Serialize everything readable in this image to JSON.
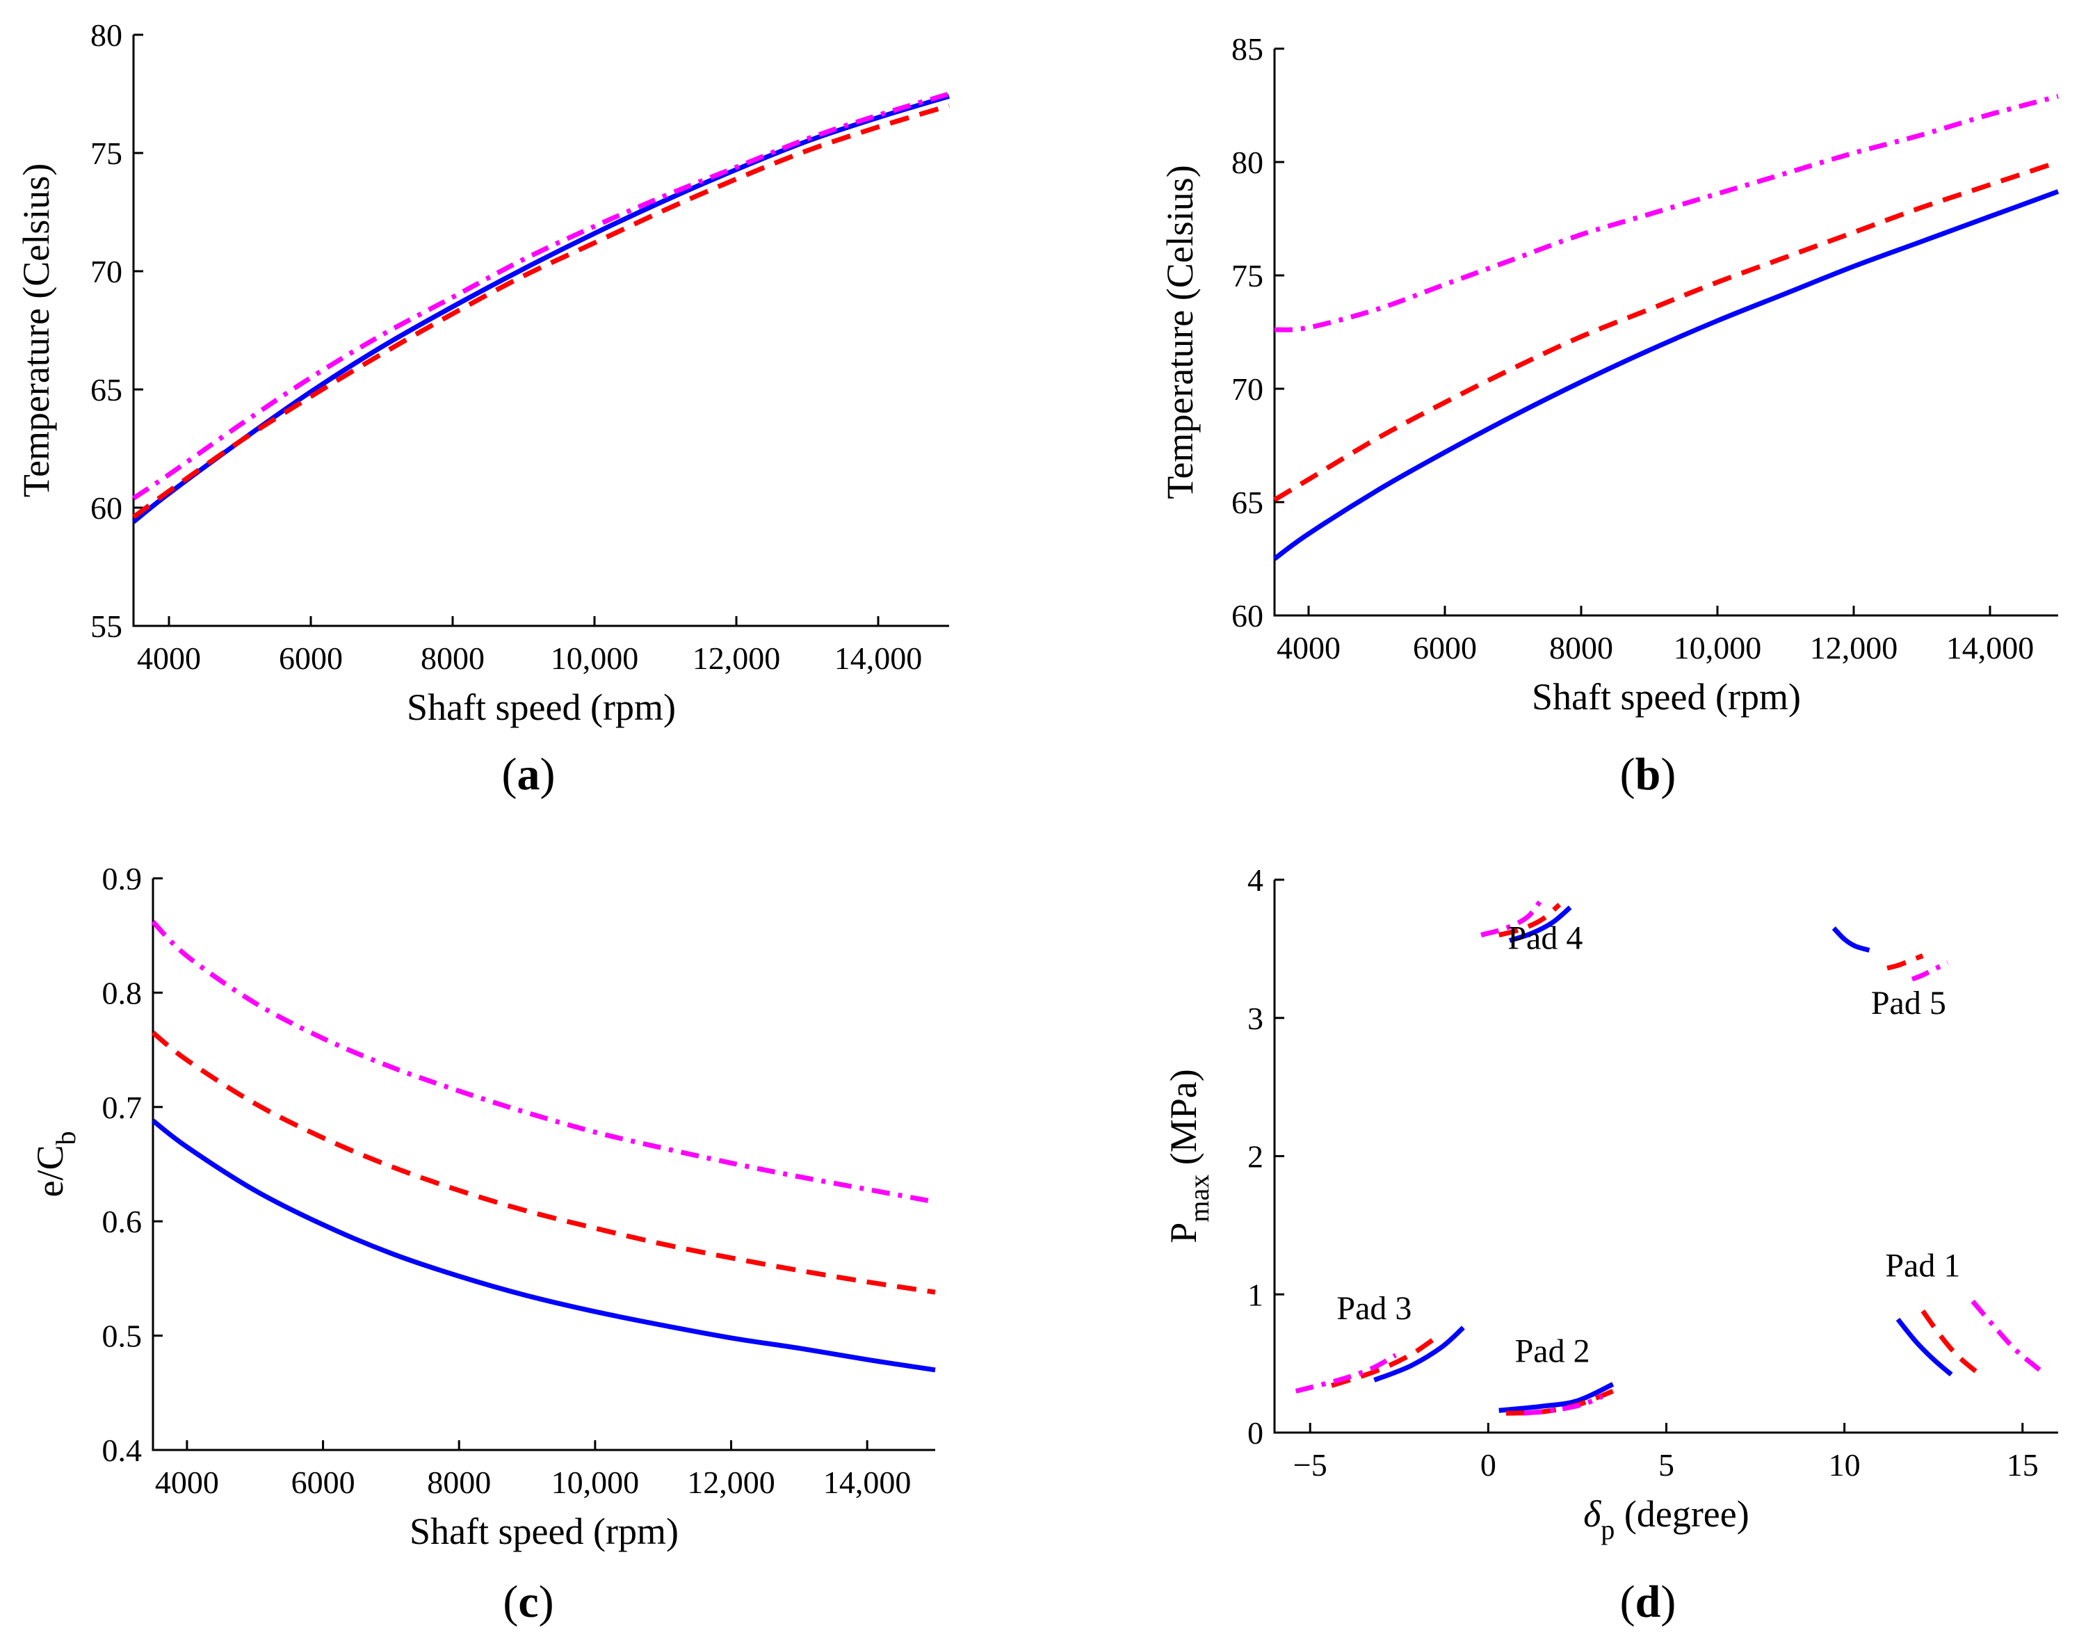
{
  "colors": {
    "blue": "#0000ff",
    "red": "#ff0000",
    "magenta": "#ff00ff",
    "axis": "#000000"
  },
  "chart_data": [
    {
      "type": "line",
      "panel": "(a)",
      "panel_letter": "a",
      "xlabel": "Shaft speed (rpm)",
      "ylabel": "Temperature (Celsius)",
      "xlim": [
        3500,
        15000
      ],
      "ylim": [
        55,
        80
      ],
      "xticks": [
        4000,
        6000,
        8000,
        10000,
        12000,
        14000
      ],
      "xtick_labels": [
        "4000",
        "6000",
        "8000",
        "10,000",
        "12,000",
        "14,000"
      ],
      "yticks": [
        55,
        60,
        65,
        70,
        75,
        80
      ],
      "ytick_labels": [
        "55",
        "60",
        "65",
        "70",
        "75",
        "80"
      ],
      "x": [
        3500,
        4000,
        5000,
        6000,
        7000,
        8000,
        9000,
        10000,
        11000,
        12000,
        13000,
        14000,
        15000
      ],
      "series": [
        {
          "name": "blue solid",
          "color": "blue",
          "dash": "solid",
          "values": [
            59.4,
            60.6,
            62.8,
            64.9,
            66.8,
            68.5,
            70.1,
            71.6,
            73.0,
            74.3,
            75.5,
            76.5,
            77.4
          ]
        },
        {
          "name": "red dashed",
          "color": "red",
          "dash": "dash",
          "values": [
            59.6,
            60.7,
            62.8,
            64.7,
            66.5,
            68.2,
            69.8,
            71.2,
            72.6,
            73.9,
            75.1,
            76.1,
            77.0
          ]
        },
        {
          "name": "magenta dash-dot",
          "color": "magenta",
          "dash": "dashdot",
          "values": [
            60.4,
            61.4,
            63.5,
            65.5,
            67.3,
            68.9,
            70.5,
            71.9,
            73.2,
            74.4,
            75.6,
            76.6,
            77.5
          ]
        }
      ]
    },
    {
      "type": "line",
      "panel": "(b)",
      "panel_letter": "b",
      "xlabel": "Shaft speed (rpm)",
      "ylabel": "Temperature (Celsius)",
      "xlim": [
        3500,
        15000
      ],
      "ylim": [
        60,
        85
      ],
      "xticks": [
        4000,
        6000,
        8000,
        10000,
        12000,
        14000
      ],
      "xtick_labels": [
        "4000",
        "6000",
        "8000",
        "10,000",
        "12,000",
        "14,000"
      ],
      "yticks": [
        60,
        65,
        70,
        75,
        80,
        85
      ],
      "ytick_labels": [
        "60",
        "65",
        "70",
        "75",
        "80",
        "85"
      ],
      "x": [
        3500,
        4000,
        5000,
        6000,
        7000,
        8000,
        9000,
        10000,
        11000,
        12000,
        13000,
        14000,
        15000
      ],
      "series": [
        {
          "name": "blue solid",
          "color": "blue",
          "dash": "solid",
          "values": [
            62.5,
            63.6,
            65.5,
            67.2,
            68.8,
            70.3,
            71.7,
            73.0,
            74.2,
            75.4,
            76.5,
            77.6,
            78.7
          ]
        },
        {
          "name": "red dashed",
          "color": "red",
          "dash": "dash",
          "values": [
            65.1,
            66.0,
            67.8,
            69.4,
            70.9,
            72.3,
            73.5,
            74.7,
            75.8,
            76.9,
            78.0,
            79.0,
            80.0
          ]
        },
        {
          "name": "magenta dash-dot",
          "color": "magenta",
          "dash": "dashdot",
          "values": [
            72.6,
            72.7,
            73.5,
            74.6,
            75.7,
            76.8,
            77.7,
            78.6,
            79.5,
            80.4,
            81.2,
            82.1,
            82.9
          ]
        }
      ]
    },
    {
      "type": "line",
      "panel": "(c)",
      "panel_letter": "c",
      "xlabel": "Shaft speed (rpm)",
      "ylabel_main": "e/C",
      "ylabel_sub": "b",
      "xlim": [
        3500,
        15000
      ],
      "ylim": [
        0.4,
        0.9
      ],
      "xticks": [
        4000,
        6000,
        8000,
        10000,
        12000,
        14000
      ],
      "xtick_labels": [
        "4000",
        "6000",
        "8000",
        "10,000",
        "12,000",
        "14,000"
      ],
      "yticks": [
        0.4,
        0.5,
        0.6,
        0.7,
        0.8,
        0.9
      ],
      "ytick_labels": [
        "0.4",
        "0.5",
        "0.6",
        "0.7",
        "0.8",
        "0.9"
      ],
      "x": [
        3500,
        4000,
        5000,
        6000,
        7000,
        8000,
        9000,
        10000,
        11000,
        12000,
        13000,
        14000,
        15000
      ],
      "series": [
        {
          "name": "blue solid",
          "color": "blue",
          "dash": "solid",
          "values": [
            0.688,
            0.665,
            0.627,
            0.597,
            0.572,
            0.552,
            0.535,
            0.521,
            0.509,
            0.498,
            0.489,
            0.479,
            0.47
          ]
        },
        {
          "name": "red dashed",
          "color": "red",
          "dash": "dash",
          "values": [
            0.765,
            0.741,
            0.703,
            0.673,
            0.648,
            0.627,
            0.609,
            0.594,
            0.58,
            0.568,
            0.557,
            0.547,
            0.538
          ]
        },
        {
          "name": "magenta dash-dot",
          "color": "magenta",
          "dash": "dashdot",
          "values": [
            0.862,
            0.832,
            0.791,
            0.76,
            0.735,
            0.714,
            0.695,
            0.678,
            0.664,
            0.651,
            0.639,
            0.628,
            0.617
          ]
        }
      ]
    },
    {
      "type": "line",
      "panel": "(d)",
      "panel_letter": "d",
      "xlabel_symbol": "δ",
      "xlabel_sub": "p",
      "xlabel_unit": " (degree)",
      "ylabel_main": "P",
      "ylabel_sub": "max",
      "ylabel_unit": " (MPa)",
      "xlim": [
        -6,
        16
      ],
      "ylim": [
        0,
        4
      ],
      "xticks": [
        -5,
        0,
        5,
        10,
        15
      ],
      "xtick_labels": [
        "−5",
        "0",
        "5",
        "10",
        "15"
      ],
      "yticks": [
        0,
        1,
        2,
        3,
        4
      ],
      "ytick_labels": [
        "0",
        "1",
        "2",
        "3",
        "4"
      ],
      "annotations": [
        {
          "text": "Pad 1",
          "x": 12.2,
          "y": 1.13
        },
        {
          "text": "Pad 2",
          "x": 1.8,
          "y": 0.51
        },
        {
          "text": "Pad 3",
          "x": -3.2,
          "y": 0.82
        },
        {
          "text": "Pad 4",
          "x": 1.6,
          "y": 3.5
        },
        {
          "text": "Pad 5",
          "x": 11.8,
          "y": 3.03
        }
      ],
      "segments": [
        {
          "pad": "Pad 1",
          "color": "blue",
          "dash": "solid",
          "x": [
            11.5,
            12.0,
            12.5,
            13.0
          ],
          "y": [
            0.82,
            0.66,
            0.53,
            0.42
          ]
        },
        {
          "pad": "Pad 1",
          "color": "red",
          "dash": "dash",
          "x": [
            12.2,
            12.7,
            13.2,
            13.9
          ],
          "y": [
            0.88,
            0.7,
            0.55,
            0.4
          ]
        },
        {
          "pad": "Pad 1",
          "color": "magenta",
          "dash": "dashdot",
          "x": [
            13.6,
            14.2,
            14.8,
            15.5
          ],
          "y": [
            0.95,
            0.77,
            0.6,
            0.45
          ]
        },
        {
          "pad": "Pad 2",
          "color": "blue",
          "dash": "solid",
          "x": [
            0.3,
            1.5,
            2.5,
            3.5
          ],
          "y": [
            0.16,
            0.19,
            0.23,
            0.35
          ]
        },
        {
          "pad": "Pad 2",
          "color": "red",
          "dash": "dash",
          "x": [
            0.5,
            1.5,
            2.5,
            3.5
          ],
          "y": [
            0.14,
            0.15,
            0.2,
            0.3
          ]
        },
        {
          "pad": "Pad 2",
          "color": "magenta",
          "dash": "dashdot",
          "x": [
            1.0,
            1.8,
            2.6,
            3.2
          ],
          "y": [
            0.14,
            0.16,
            0.2,
            0.26
          ]
        },
        {
          "pad": "Pad 3",
          "color": "blue",
          "dash": "solid",
          "x": [
            -3.2,
            -2.2,
            -1.3,
            -0.7
          ],
          "y": [
            0.38,
            0.48,
            0.62,
            0.76
          ]
        },
        {
          "pad": "Pad 3",
          "color": "red",
          "dash": "dash",
          "x": [
            -4.4,
            -3.2,
            -2.2,
            -1.4
          ],
          "y": [
            0.34,
            0.44,
            0.56,
            0.7
          ]
        },
        {
          "pad": "Pad 3",
          "color": "magenta",
          "dash": "dashdot",
          "x": [
            -5.4,
            -4.2,
            -3.3,
            -2.6
          ],
          "y": [
            0.3,
            0.38,
            0.46,
            0.56
          ]
        },
        {
          "pad": "Pad 4",
          "color": "blue",
          "dash": "solid",
          "x": [
            0.6,
            1.2,
            1.8,
            2.3
          ],
          "y": [
            3.56,
            3.61,
            3.69,
            3.8
          ]
        },
        {
          "pad": "Pad 4",
          "color": "red",
          "dash": "dash",
          "x": [
            0.3,
            0.9,
            1.5,
            2.0
          ],
          "y": [
            3.6,
            3.64,
            3.71,
            3.82
          ]
        },
        {
          "pad": "Pad 4",
          "color": "magenta",
          "dash": "dashdot",
          "x": [
            -0.2,
            0.5,
            1.1,
            1.5
          ],
          "y": [
            3.6,
            3.65,
            3.73,
            3.86
          ]
        },
        {
          "pad": "Pad 5",
          "color": "blue",
          "dash": "solid",
          "x": [
            9.7,
            10.0,
            10.3,
            10.7
          ],
          "y": [
            3.65,
            3.57,
            3.52,
            3.49
          ]
        },
        {
          "pad": "Pad 5",
          "color": "red",
          "dash": "dash",
          "x": [
            11.2,
            11.5,
            11.8,
            12.2
          ],
          "y": [
            3.36,
            3.38,
            3.41,
            3.45
          ]
        },
        {
          "pad": "Pad 5",
          "color": "magenta",
          "dash": "dashdot",
          "x": [
            11.9,
            12.2,
            12.5,
            12.9
          ],
          "y": [
            3.28,
            3.31,
            3.35,
            3.4
          ]
        }
      ]
    }
  ]
}
